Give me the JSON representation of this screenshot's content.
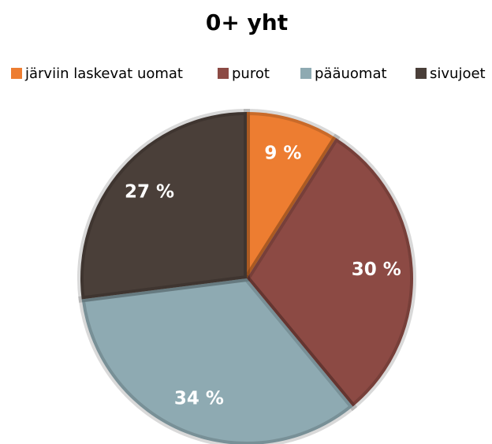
{
  "chart_data": {
    "type": "pie",
    "title": "0+ yht",
    "categories": [
      "järviin laskevat uomat",
      "purot",
      "pääuomat",
      "sivujoet"
    ],
    "values": [
      9,
      30,
      34,
      27
    ],
    "value_labels": [
      "9 %",
      "30 %",
      "34 %",
      "27 %"
    ],
    "colors": [
      "#ed7d31",
      "#8c4a44",
      "#8eaab2",
      "#4a3f39"
    ],
    "legend": "top"
  }
}
